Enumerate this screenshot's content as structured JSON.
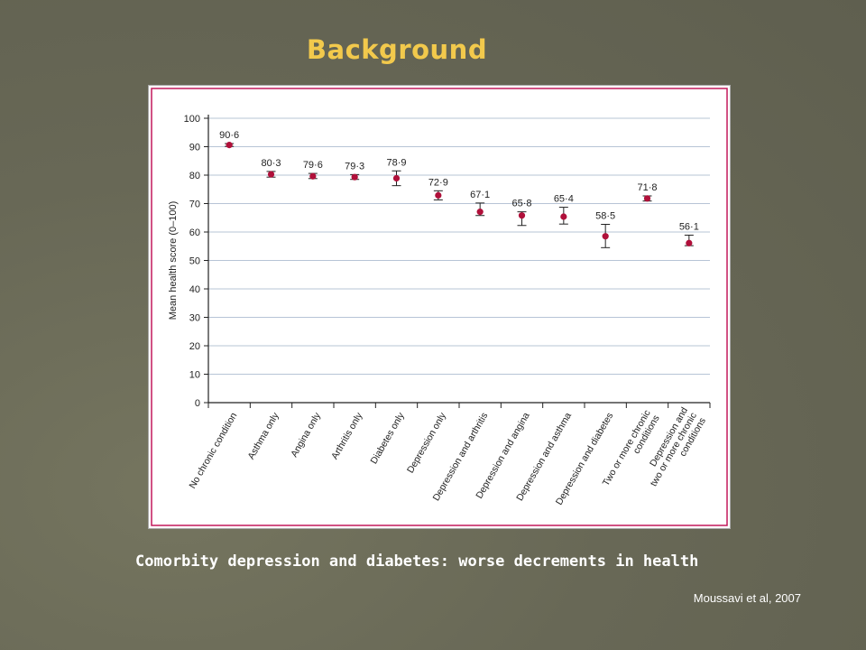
{
  "slide": {
    "title": "Background",
    "caption": "Comorbity depression and diabetes: worse decrements in health",
    "citation": "Moussavi et al, 2007"
  },
  "colors": {
    "marker": "#b0103a",
    "frame": "#c2185b",
    "grid": "#b7c4d6"
  },
  "chart_data": {
    "type": "scatter",
    "ylabel": "Mean health score (0–100)",
    "ylim": [
      0,
      100
    ],
    "yticks": [
      "0",
      "10",
      "20",
      "30",
      "40",
      "50",
      "60",
      "70",
      "80",
      "90",
      "100"
    ],
    "grid": true,
    "categories": [
      [
        "No chronic condition"
      ],
      [
        "Asthma only"
      ],
      [
        "Angina only"
      ],
      [
        "Arthritis only"
      ],
      [
        "Diabetes only"
      ],
      [
        "Depression only"
      ],
      [
        "Depression and arthritis"
      ],
      [
        "Depression and angina"
      ],
      [
        "Depression and asthma"
      ],
      [
        "Depression and diabetes"
      ],
      [
        "Two or more chronic",
        "conditions"
      ],
      [
        "Depression and",
        "two or more chronic",
        "conditions"
      ]
    ],
    "value_labels": [
      "90·6",
      "80·3",
      "79·6",
      "79·3",
      "78·9",
      "72·9",
      "67·1",
      "65·8",
      "65·4",
      "58·5",
      "71·8",
      "56·1"
    ],
    "values": [
      90.6,
      80.3,
      79.6,
      79.3,
      78.9,
      72.9,
      67.1,
      65.8,
      65.4,
      58.5,
      71.8,
      56.1
    ],
    "ci_low": [
      90.1,
      79.3,
      78.8,
      78.5,
      76.3,
      71.3,
      65.8,
      62.3,
      62.8,
      54.5,
      70.9,
      55.2
    ],
    "ci_high": [
      91.1,
      81.3,
      80.6,
      80.2,
      81.5,
      74.5,
      70.2,
      67.1,
      68.7,
      62.7,
      72.7,
      58.9
    ]
  }
}
